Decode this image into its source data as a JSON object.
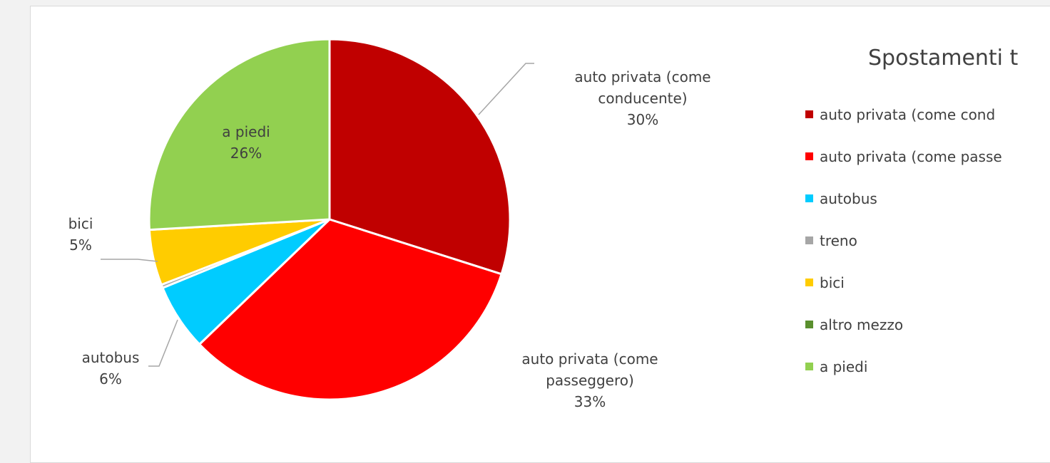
{
  "chart_data": {
    "type": "pie",
    "title": "Spostamenti t",
    "slices": [
      {
        "label": "auto privata (come conducente)",
        "value": 30,
        "color": "#c00000",
        "data_label": [
          "auto privata (come",
          "conducente)",
          "30%"
        ]
      },
      {
        "label": "auto privata (come passeggero)",
        "value": 33,
        "color": "#ff0000",
        "data_label": [
          "auto privata (come",
          "passeggero)",
          "33%"
        ]
      },
      {
        "label": "autobus",
        "value": 6,
        "color": "#00ccff",
        "data_label": [
          "autobus",
          "6%"
        ]
      },
      {
        "label": "treno",
        "value": 0.3,
        "color": "#a6a6a6",
        "data_label": []
      },
      {
        "label": "bici",
        "value": 5,
        "color": "#ffcc00",
        "data_label": [
          "bici",
          "5%"
        ]
      },
      {
        "label": "altro mezzo",
        "value": 0,
        "color": "#5a8f2e",
        "data_label": []
      },
      {
        "label": "a piedi",
        "value": 26,
        "color": "#92d050",
        "data_label": [
          "a piedi",
          "26%"
        ]
      }
    ],
    "legend": {
      "position": "right",
      "items": [
        "auto privata (come cond",
        "auto privata (come passe",
        "autobus",
        "treno",
        "bici",
        "altro mezzo",
        "a piedi"
      ]
    }
  }
}
